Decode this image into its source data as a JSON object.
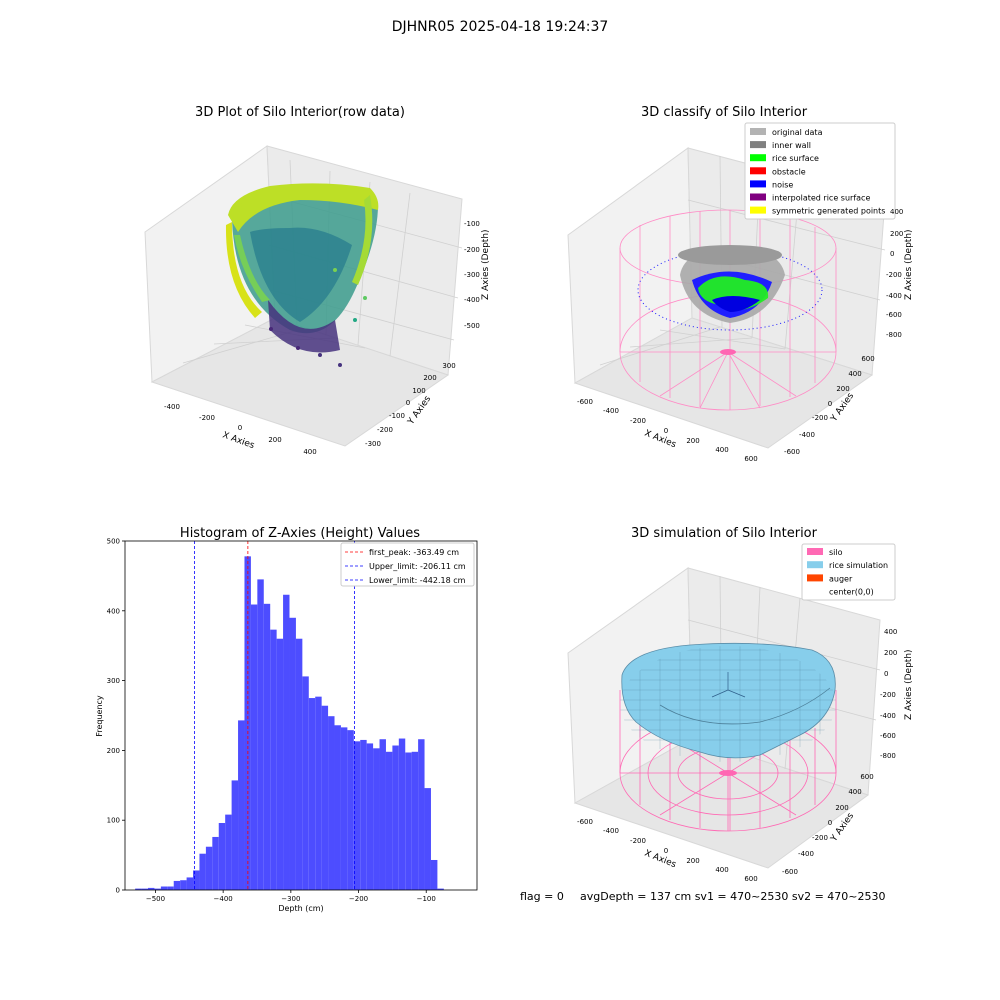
{
  "suptitle": "DJHNR05 2025-04-18 19:24:37",
  "footer": {
    "flag": "flag = 0",
    "stats": "avgDepth = 137 cm  sv1 = 470~2530  sv2 = 470~2530"
  },
  "chart_data": [
    {
      "type": "scatter",
      "projection": "3d",
      "title": "3D Plot of Silo Interior(row data)",
      "xlabel": "X Axies",
      "ylabel": "Y Axies",
      "zlabel": "Z Axies (Depth)",
      "x_ticks": [
        "-400",
        "-200",
        "0",
        "200",
        "400"
      ],
      "y_ticks": [
        "-300",
        "-200",
        "-100",
        "0",
        "100",
        "200",
        "300"
      ],
      "z_ticks": [
        "-100",
        "-200",
        "-300",
        "-400",
        "-500"
      ],
      "colormap": "viridis"
    },
    {
      "type": "scatter",
      "projection": "3d",
      "title": "3D classify of Silo Interior",
      "xlabel": "X Axies",
      "ylabel": "Y Axies",
      "zlabel": "Z Axies (Depth)",
      "x_ticks": [
        "-600",
        "-400",
        "-200",
        "0",
        "200",
        "400",
        "600"
      ],
      "y_ticks": [
        "-600",
        "-400",
        "-200",
        "0",
        "200",
        "400",
        "600"
      ],
      "z_ticks": [
        "400",
        "200",
        "0",
        "-200",
        "-400",
        "-600",
        "-800"
      ],
      "legend_position": "top-right",
      "legend": [
        {
          "label": "original data",
          "color": "#b3b3b3"
        },
        {
          "label": "inner wall",
          "color": "#808080"
        },
        {
          "label": "rice surface",
          "color": "#00ff00"
        },
        {
          "label": "obstacle",
          "color": "#ff0000"
        },
        {
          "label": "noise",
          "color": "#0000ff"
        },
        {
          "label": "interpolated rice surface",
          "color": "#800080"
        },
        {
          "label": "symmetric generated points",
          "color": "#ffff00"
        }
      ]
    },
    {
      "type": "bar",
      "title": "Histogram of Z-Axies (Height) Values",
      "xlabel": "Depth (cm)",
      "ylabel": "Frequency",
      "xlim": [
        -545,
        -25
      ],
      "ylim": [
        0,
        500
      ],
      "x_ticks": [
        -500,
        -400,
        -300,
        -200,
        -100
      ],
      "y_ticks": [
        0,
        100,
        200,
        300,
        400,
        500
      ],
      "bar_color": "#4d4dff",
      "bin_start": -530,
      "bin_width": 9.5,
      "values": [
        2,
        2,
        3,
        2,
        5,
        5,
        13,
        14,
        18,
        28,
        52,
        62,
        76,
        96,
        108,
        157,
        243,
        478,
        409,
        445,
        410,
        373,
        360,
        423,
        390,
        360,
        306,
        275,
        277,
        264,
        249,
        236,
        233,
        229,
        213,
        215,
        210,
        203,
        216,
        198,
        207,
        217,
        197,
        198,
        216,
        146,
        43,
        2
      ],
      "lines": [
        {
          "label": "first_peak: -363.49 cm",
          "x": -363.49,
          "color": "#ff0000"
        },
        {
          "label": "Upper_limit: -206.11 cm",
          "x": -206.11,
          "color": "#0000ff"
        },
        {
          "label": "Lower_limit: -442.18 cm",
          "x": -442.18,
          "color": "#0000ff"
        }
      ],
      "legend_position": "top-right"
    },
    {
      "type": "surface",
      "projection": "3d",
      "title": "3D simulation of Silo Interior",
      "xlabel": "X Axies",
      "ylabel": "Y Axies",
      "zlabel": "Z Axies (Depth)",
      "x_ticks": [
        "-600",
        "-400",
        "-200",
        "0",
        "200",
        "400",
        "600"
      ],
      "y_ticks": [
        "-600",
        "-400",
        "-200",
        "0",
        "200",
        "400",
        "600"
      ],
      "z_ticks": [
        "400",
        "200",
        "0",
        "-200",
        "-400",
        "-600",
        "-800"
      ],
      "legend_position": "top-right",
      "legend": [
        {
          "label": "silo",
          "color": "#ff69b4"
        },
        {
          "label": "rice simulation",
          "color": "#87ceeb"
        },
        {
          "label": "auger",
          "color": "#ff4500"
        },
        {
          "label": "center(0,0)",
          "color": ""
        }
      ]
    }
  ]
}
